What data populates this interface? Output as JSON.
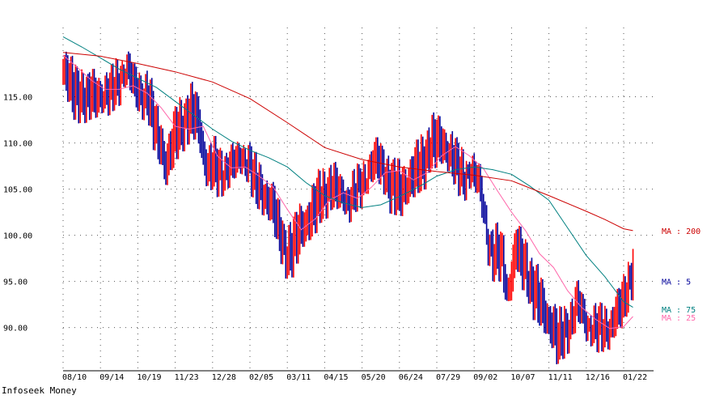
{
  "footer": {
    "source": "Infoseek Money"
  },
  "chart_data": {
    "type": "line",
    "title": "",
    "xlabel": "",
    "ylabel": "",
    "ylim": [
      85.5,
      122.5
    ],
    "yticks": [
      90,
      95,
      100,
      105,
      110,
      115
    ],
    "ytick_labels": [
      "90.00",
      "95.00",
      "100.00",
      "105.00",
      "110.00",
      "115.00"
    ],
    "xticks": [
      "08/10",
      "09/14",
      "10/19",
      "11/23",
      "12/28",
      "02/05",
      "03/11",
      "04/15",
      "05/20",
      "06/24",
      "07/29",
      "09/02",
      "10/07",
      "11/11",
      "12/16",
      "01/22"
    ],
    "grid": true,
    "legend": "right-inline",
    "x_index_range": [
      0,
      360
    ],
    "xtick_index": [
      0,
      24,
      48,
      72,
      96,
      120,
      144,
      168,
      192,
      216,
      240,
      264,
      288,
      312,
      336,
      360
    ],
    "series": [
      {
        "name": "MA : 5",
        "color": "#000099",
        "x": [
          0,
          3,
          6,
          9,
          12,
          15,
          18,
          21,
          24,
          27,
          30,
          33,
          36,
          39,
          42,
          45,
          48,
          51,
          54,
          57,
          60,
          63,
          66,
          69,
          72,
          75,
          78,
          81,
          84,
          87,
          90,
          93,
          96,
          99,
          102,
          105,
          108,
          111,
          114,
          117,
          120,
          123,
          126,
          129,
          132,
          135,
          138,
          141,
          144,
          147,
          150,
          153,
          156,
          159,
          162,
          165,
          168,
          171,
          174,
          177,
          180,
          183,
          186,
          189,
          192,
          195,
          198,
          201,
          204,
          207,
          210,
          213,
          216,
          219,
          222,
          225,
          228,
          231,
          234,
          237,
          240,
          243,
          246,
          249,
          252,
          255,
          258,
          261,
          264,
          267,
          270,
          273,
          276,
          279,
          282,
          285,
          288,
          291,
          294,
          297,
          300,
          303,
          306,
          309,
          312,
          315,
          318,
          321,
          324,
          327,
          330,
          333,
          336,
          339,
          342,
          345,
          348,
          351,
          354,
          357,
          360,
          363,
          366
        ],
        "values": [
          118.5,
          117.3,
          115.8,
          115.4,
          115.6,
          115.0,
          115.3,
          114.8,
          115.1,
          115.4,
          115.2,
          115.6,
          116.0,
          117.5,
          117.6,
          116.1,
          115.2,
          115.1,
          115.3,
          113.0,
          111.0,
          110.0,
          107.8,
          109.5,
          111.2,
          112.0,
          112.8,
          113.4,
          113.3,
          112.3,
          109.1,
          107.2,
          107.5,
          107.0,
          106.5,
          107.0,
          107.3,
          107.4,
          108.0,
          107.8,
          107.2,
          105.5,
          105.0,
          104.5,
          103.8,
          103.0,
          101.0,
          99.5,
          98.2,
          98.8,
          100.0,
          101.2,
          101.8,
          102.3,
          103.4,
          104.2,
          104.8,
          105.0,
          105.1,
          104.5,
          104.2,
          103.2,
          103.8,
          104.5,
          105.2,
          106.3,
          107.4,
          108.0,
          107.5,
          106.8,
          105.5,
          105.3,
          104.8,
          105.6,
          106.2,
          107.0,
          107.5,
          108.0,
          109.5,
          110.3,
          110.2,
          110.0,
          109.5,
          108.7,
          107.5,
          106.5,
          105.8,
          106.8,
          106.0,
          105.2,
          102.5,
          99.0,
          97.5,
          98.0,
          97.5,
          94.0,
          96.0,
          99.0,
          97.5,
          97.0,
          95.0,
          94.0,
          93.0,
          92.0,
          91.0,
          90.0,
          88.5,
          89.5,
          90.0,
          91.0,
          92.5,
          91.5,
          90.0,
          89.5,
          89.5,
          89.5,
          89.5,
          90.0,
          91.0,
          92.0,
          93.0,
          95.0,
          97.0
        ]
      },
      {
        "name": "MA : 25",
        "color": "#ff66aa",
        "x": [
          0,
          9,
          18,
          27,
          36,
          45,
          54,
          63,
          72,
          81,
          90,
          99,
          108,
          117,
          126,
          135,
          144,
          153,
          162,
          171,
          180,
          189,
          198,
          207,
          216,
          225,
          234,
          243,
          252,
          261,
          270,
          279,
          288,
          297,
          306,
          315,
          324,
          333,
          342,
          351,
          360,
          366
        ],
        "values": [
          119.5,
          118.2,
          116.8,
          115.8,
          115.8,
          116.2,
          115.4,
          113.8,
          111.8,
          111.5,
          111.8,
          108.6,
          107.3,
          107.4,
          106.4,
          105.2,
          102.8,
          100.6,
          101.8,
          103.8,
          104.6,
          104.0,
          105.2,
          106.8,
          107.0,
          106.0,
          106.8,
          108.6,
          109.6,
          108.6,
          107.2,
          104.8,
          102.5,
          100.5,
          98.0,
          96.5,
          94.0,
          92.2,
          90.9,
          89.9,
          90.1,
          91.2
        ]
      },
      {
        "name": "MA : 75",
        "color": "#008080",
        "x": [
          0,
          12,
          24,
          36,
          48,
          60,
          72,
          84,
          96,
          108,
          120,
          132,
          144,
          156,
          168,
          180,
          192,
          204,
          216,
          228,
          240,
          252,
          264,
          276,
          288,
          300,
          312,
          324,
          336,
          348,
          360,
          366
        ],
        "values": [
          121.5,
          120.4,
          119.2,
          118.0,
          117.0,
          116.0,
          114.5,
          113.0,
          111.5,
          110.2,
          109.2,
          108.4,
          107.4,
          105.7,
          104.3,
          103.5,
          103.0,
          103.3,
          104.2,
          105.2,
          106.4,
          107.1,
          107.4,
          107.1,
          106.6,
          105.3,
          103.8,
          100.8,
          97.8,
          95.5,
          92.8,
          92.2
        ]
      },
      {
        "name": "MA : 200",
        "color": "#cc0000",
        "x": [
          0,
          24,
          48,
          72,
          96,
          120,
          144,
          168,
          192,
          216,
          240,
          264,
          288,
          312,
          336,
          348,
          360,
          366
        ],
        "values": [
          119.8,
          119.4,
          118.6,
          117.7,
          116.6,
          114.8,
          112.2,
          109.5,
          108.2,
          107.4,
          106.9,
          106.5,
          105.9,
          104.3,
          102.6,
          101.7,
          100.7,
          100.5
        ]
      }
    ]
  }
}
